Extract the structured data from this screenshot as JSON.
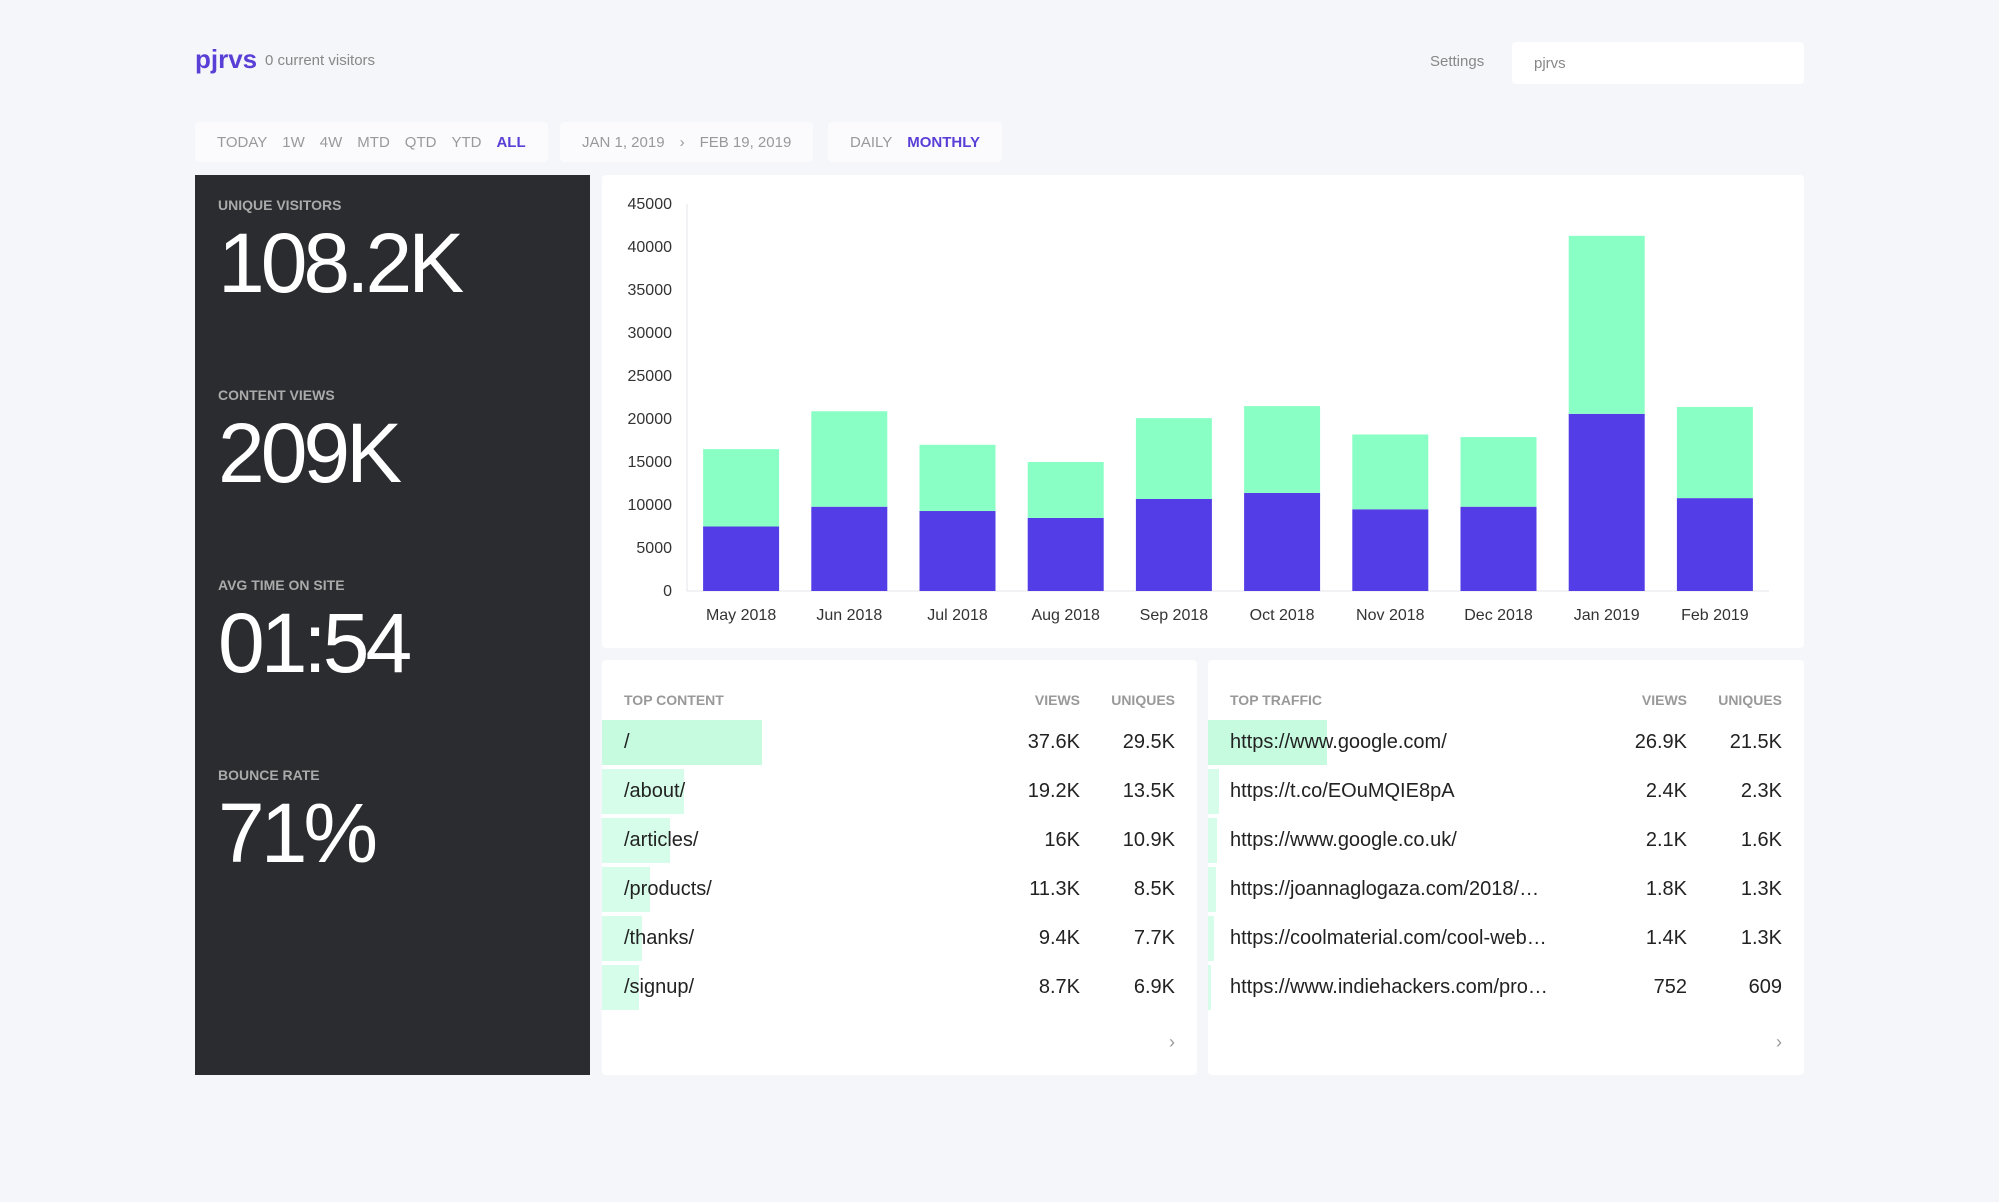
{
  "header": {
    "site": "pjrvs",
    "visitors": "0 current visitors",
    "settings": "Settings",
    "search_value": "pjrvs"
  },
  "ranges": [
    "TODAY",
    "1W",
    "4W",
    "MTD",
    "QTD",
    "YTD",
    "ALL"
  ],
  "active_range": "ALL",
  "dates": {
    "start": "JAN 1, 2019",
    "sep": "›",
    "end": "FEB 19, 2019"
  },
  "intervals": [
    "DAILY",
    "MONTHLY"
  ],
  "active_interval": "MONTHLY",
  "stats": [
    {
      "label": "UNIQUE VISITORS",
      "value": "108.2K"
    },
    {
      "label": "CONTENT VIEWS",
      "value": "209K"
    },
    {
      "label": "AVG TIME ON SITE",
      "value": "01:54"
    },
    {
      "label": "BOUNCE RATE",
      "value": "71%"
    }
  ],
  "colors": {
    "accent": "#5a3fd6",
    "blue": "#523de6",
    "green": "#8affc5",
    "bar_bg": "#d6fde9"
  },
  "chart_data": {
    "type": "bar",
    "stacked": true,
    "categories": [
      "May 2018",
      "Jun 2018",
      "Jul 2018",
      "Aug 2018",
      "Sep 2018",
      "Oct 2018",
      "Nov 2018",
      "Dec 2018",
      "Jan 2019",
      "Feb 2019"
    ],
    "series": [
      {
        "color": "#523de6",
        "values": [
          7500,
          9800,
          9300,
          8500,
          10700,
          11400,
          9500,
          9800,
          20600,
          10800
        ]
      },
      {
        "color": "#8affc5",
        "values": [
          9000,
          11100,
          7700,
          6500,
          9400,
          10100,
          8700,
          8100,
          20700,
          10600
        ]
      }
    ],
    "ylim": [
      0,
      45000
    ],
    "yticks": [
      0,
      5000,
      10000,
      15000,
      20000,
      25000,
      30000,
      35000,
      40000,
      45000
    ],
    "grid": false
  },
  "top_content": {
    "title": "TOP CONTENT",
    "views": "VIEWS",
    "uniques": "UNIQUES",
    "more": "›",
    "rows": [
      {
        "name": "/",
        "views": "37.6K",
        "uniques": "29.5K"
      },
      {
        "name": "/about/",
        "views": "19.2K",
        "uniques": "13.5K"
      },
      {
        "name": "/articles/",
        "views": "16K",
        "uniques": "10.9K"
      },
      {
        "name": "/products/",
        "views": "11.3K",
        "uniques": "8.5K"
      },
      {
        "name": "/thanks/",
        "views": "9.4K",
        "uniques": "7.7K"
      },
      {
        "name": "/signup/",
        "views": "8.7K",
        "uniques": "6.9K"
      }
    ]
  },
  "top_traffic": {
    "title": "TOP TRAFFIC",
    "views": "VIEWS",
    "uniques": "UNIQUES",
    "more": "›",
    "rows": [
      {
        "name": "https://www.google.com/",
        "views": "26.9K",
        "uniques": "21.5K"
      },
      {
        "name": "https://t.co/EOuMQIE8pA",
        "views": "2.4K",
        "uniques": "2.3K"
      },
      {
        "name": "https://www.google.co.uk/",
        "views": "2.1K",
        "uniques": "1.6K"
      },
      {
        "name": "https://joannaglogaza.com/2018/…",
        "views": "1.8K",
        "uniques": "1.3K"
      },
      {
        "name": "https://coolmaterial.com/cool-web…",
        "views": "1.4K",
        "uniques": "1.3K"
      },
      {
        "name": "https://www.indiehackers.com/pro…",
        "views": "752",
        "uniques": "609"
      }
    ]
  }
}
